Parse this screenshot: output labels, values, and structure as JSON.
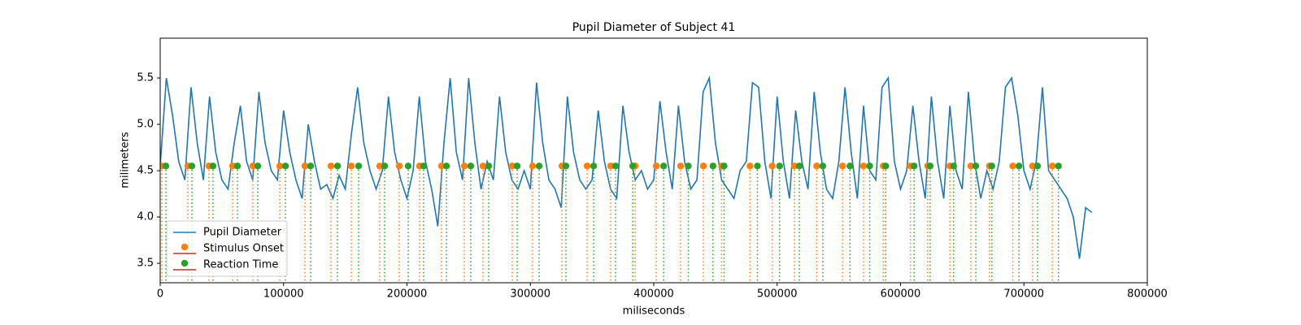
{
  "chart_data": {
    "type": "line",
    "title": "Pupil Diameter of Subject 41",
    "xlabel": "miliseconds",
    "ylabel": "milimeters",
    "xlim": [
      0,
      800000
    ],
    "ylim": [
      3.29,
      5.93
    ],
    "xticks": [
      0,
      100000,
      200000,
      300000,
      400000,
      500000,
      600000,
      700000,
      800000
    ],
    "yticks": [
      3.5,
      {
        "value": 4,
        "label": "4.0"
      },
      4.5,
      {
        "value": 5,
        "label": "5.0"
      },
      5.5
    ],
    "legend": "lower left",
    "series": [
      {
        "name": "Pupil Diameter",
        "color": "#1f77b4",
        "kind": "line",
        "x": [
          0,
          5000,
          10000,
          15000,
          20000,
          25000,
          30000,
          35000,
          40000,
          45000,
          50000,
          55000,
          60000,
          65000,
          70000,
          75000,
          80000,
          85000,
          90000,
          95000,
          100000,
          105000,
          110000,
          115000,
          120000,
          125000,
          130000,
          135000,
          140000,
          145000,
          150000,
          155000,
          160000,
          165000,
          170000,
          175000,
          180000,
          185000,
          190000,
          195000,
          200000,
          205000,
          210000,
          215000,
          220000,
          225000,
          230000,
          235000,
          240000,
          245000,
          250000,
          255000,
          260000,
          265000,
          270000,
          275000,
          280000,
          285000,
          290000,
          295000,
          300000,
          305000,
          310000,
          315000,
          320000,
          325000,
          330000,
          335000,
          340000,
          345000,
          350000,
          355000,
          360000,
          365000,
          370000,
          375000,
          380000,
          385000,
          390000,
          395000,
          400000,
          405000,
          410000,
          415000,
          420000,
          425000,
          430000,
          435000,
          440000,
          445000,
          450000,
          455000,
          460000,
          465000,
          470000,
          475000,
          480000,
          485000,
          490000,
          495000,
          500000,
          505000,
          510000,
          515000,
          520000,
          525000,
          530000,
          535000,
          540000,
          545000,
          550000,
          555000,
          560000,
          565000,
          570000,
          575000,
          580000,
          585000,
          590000,
          595000,
          600000,
          605000,
          610000,
          615000,
          620000,
          625000,
          630000,
          635000,
          640000,
          645000,
          650000,
          655000,
          660000,
          665000,
          670000,
          675000,
          680000,
          685000,
          690000,
          695000,
          700000,
          705000,
          710000,
          715000,
          720000,
          725000,
          730000,
          735000,
          740000,
          745000,
          750000,
          755000
        ],
        "values": [
          4.55,
          5.5,
          5.1,
          4.6,
          4.4,
          5.4,
          4.8,
          4.4,
          5.3,
          4.7,
          4.4,
          4.3,
          4.8,
          5.2,
          4.6,
          4.4,
          5.35,
          4.8,
          4.5,
          4.4,
          5.15,
          4.7,
          4.4,
          4.2,
          5.0,
          4.6,
          4.3,
          4.35,
          4.2,
          4.45,
          4.3,
          4.9,
          5.4,
          4.8,
          4.5,
          4.3,
          4.5,
          5.3,
          4.7,
          4.4,
          4.2,
          4.5,
          5.3,
          4.6,
          4.3,
          3.9,
          4.8,
          5.5,
          4.7,
          4.4,
          5.5,
          4.8,
          4.3,
          4.6,
          4.4,
          5.3,
          4.7,
          4.4,
          4.3,
          4.5,
          4.3,
          5.45,
          4.8,
          4.4,
          4.3,
          4.1,
          5.3,
          4.7,
          4.4,
          4.3,
          4.4,
          5.15,
          4.6,
          4.3,
          4.2,
          5.2,
          4.7,
          4.4,
          4.5,
          4.3,
          4.4,
          5.25,
          4.7,
          4.3,
          5.2,
          4.6,
          4.3,
          4.4,
          5.35,
          5.5,
          4.8,
          4.4,
          4.3,
          4.2,
          4.5,
          4.6,
          5.45,
          5.4,
          4.6,
          4.2,
          5.3,
          4.6,
          4.2,
          5.15,
          4.6,
          4.3,
          5.35,
          4.7,
          4.3,
          4.2,
          4.6,
          5.4,
          4.7,
          4.2,
          5.2,
          4.5,
          4.4,
          5.4,
          5.5,
          4.6,
          4.3,
          4.5,
          5.2,
          4.6,
          4.2,
          5.3,
          4.6,
          4.2,
          5.2,
          4.5,
          4.3,
          5.35,
          4.6,
          4.2,
          4.5,
          4.3,
          4.6,
          5.4,
          5.5,
          5.1,
          4.5,
          4.3,
          4.6,
          5.4,
          4.5,
          4.4,
          4.3,
          4.2,
          4.0,
          3.55,
          4.1,
          4.05
        ]
      },
      {
        "name": "Stimulus Onset",
        "color": "#ff7f0e",
        "kind": "stem",
        "baseline_color": "#d62728",
        "x": [
          1300,
          22400,
          39500,
          58700,
          75100,
          96900,
          117300,
          138400,
          154900,
          177900,
          193700,
          210200,
          228000,
          246500,
          261600,
          285300,
          301800,
          325600,
          346000,
          365100,
          384900,
          402000,
          421800,
          440200,
          455000,
          478000,
          496000,
          514000,
          532000,
          553000,
          570000,
          586000,
          608000,
          622000,
          640000,
          657000,
          672000,
          691000,
          707000,
          723000
        ],
        "values": [
          4.55,
          4.55,
          4.55,
          4.55,
          4.55,
          4.55,
          4.55,
          4.55,
          4.55,
          4.55,
          4.55,
          4.55,
          4.55,
          4.55,
          4.55,
          4.55,
          4.55,
          4.55,
          4.55,
          4.55,
          4.55,
          4.55,
          4.55,
          4.55,
          4.55,
          4.55,
          4.55,
          4.55,
          4.55,
          4.55,
          4.55,
          4.55,
          4.55,
          4.55,
          4.55,
          4.55,
          4.55,
          4.55,
          4.55,
          4.55
        ]
      },
      {
        "name": "Reaction Time",
        "color": "#2ca02c",
        "kind": "stem",
        "baseline_color": "#d62728",
        "x": [
          4600,
          25700,
          42800,
          62600,
          79100,
          101500,
          121900,
          143700,
          160800,
          181900,
          201000,
          213500,
          232000,
          251700,
          266200,
          289300,
          307100,
          328800,
          351300,
          369000,
          383000,
          408000,
          428000,
          448000,
          457000,
          484000,
          502000,
          518000,
          537000,
          559000,
          575000,
          588000,
          611000,
          624000,
          643000,
          661000,
          674000,
          696000,
          711000,
          728000
        ],
        "values": [
          4.55,
          4.55,
          4.55,
          4.55,
          4.55,
          4.55,
          4.55,
          4.55,
          4.55,
          4.55,
          4.55,
          4.55,
          4.55,
          4.55,
          4.55,
          4.55,
          4.55,
          4.55,
          4.55,
          4.55,
          4.55,
          4.55,
          4.55,
          4.55,
          4.55,
          4.55,
          4.55,
          4.55,
          4.55,
          4.55,
          4.55,
          4.55,
          4.55,
          4.55,
          4.55,
          4.55,
          4.55,
          4.55,
          4.55,
          4.55
        ]
      }
    ]
  }
}
